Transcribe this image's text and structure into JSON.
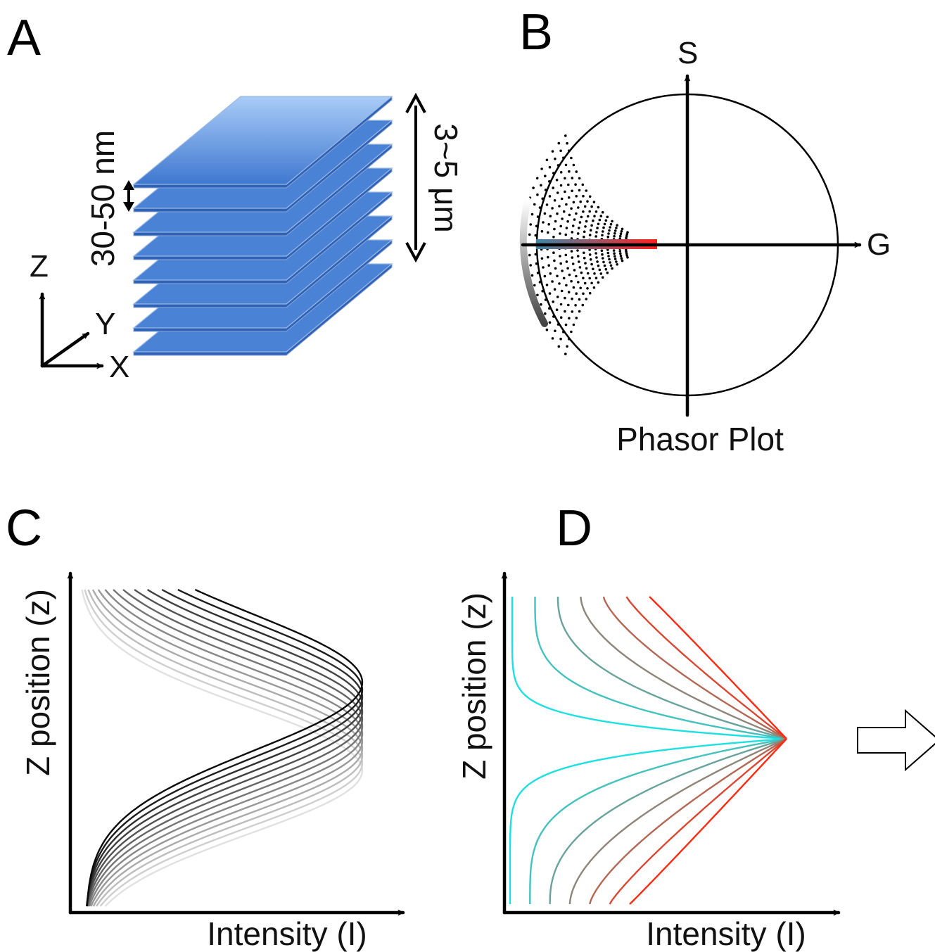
{
  "panels": {
    "a": {
      "letter": "A",
      "sheet_count": 8,
      "spacing_label": "30-50 nm",
      "height_label": "3~5 μm",
      "axis_z": "Z",
      "axis_y": "Y",
      "axis_x": "X",
      "sheet_color_top": "#a9ccf7",
      "sheet_color_bottom": "#3f78d0"
    },
    "b": {
      "letter": "B",
      "axis_s": "S",
      "axis_g": "G",
      "caption": "Phasor Plot",
      "gradient_start": "#3f86a8",
      "gradient_end": "#ff2020"
    },
    "c": {
      "letter": "C",
      "xlabel": "Intensity (I)",
      "ylabel": "Z position (z)",
      "curve_count": 13
    },
    "d": {
      "letter": "D",
      "xlabel": "Intensity (I)",
      "ylabel": "Z position (z)",
      "curve_count": 14,
      "color_start": "#1ee0e0",
      "color_end": "#ff2a10"
    }
  }
}
